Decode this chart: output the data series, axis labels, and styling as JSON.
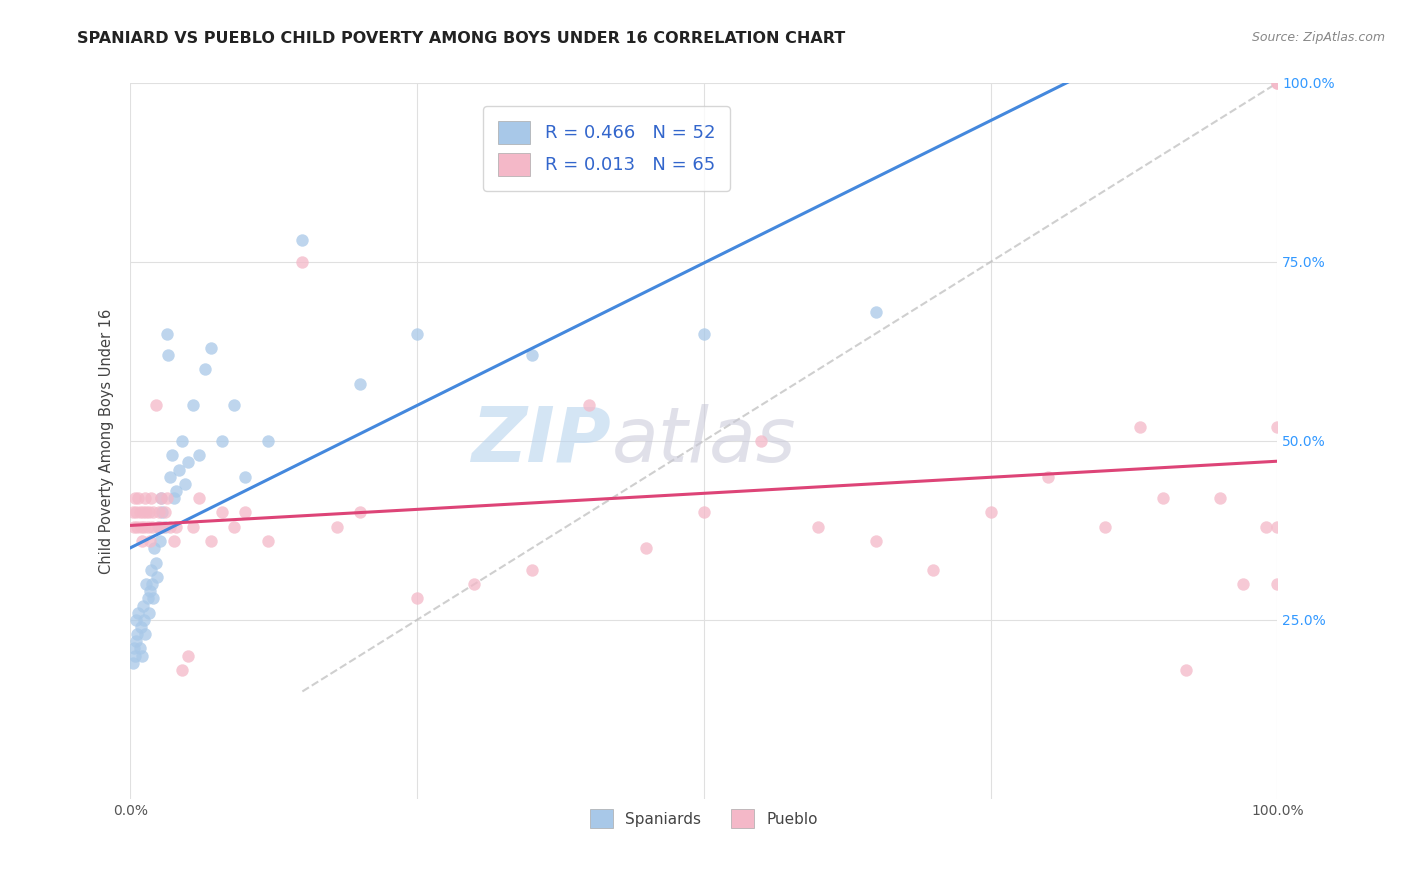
{
  "title": "SPANIARD VS PUEBLO CHILD POVERTY AMONG BOYS UNDER 16 CORRELATION CHART",
  "source": "Source: ZipAtlas.com",
  "ylabel": "Child Poverty Among Boys Under 16",
  "watermark_zip": "ZIP",
  "watermark_atlas": "atlas",
  "legend_r1": "0.466",
  "legend_n1": "52",
  "legend_r2": "0.013",
  "legend_n2": "65",
  "spaniard_color": "#a8c8e8",
  "pueblo_color": "#f4b8c8",
  "spaniard_label": "Spaniards",
  "pueblo_label": "Pueblo",
  "trend_spaniard_color": "#4488dd",
  "trend_pueblo_color": "#dd4477",
  "diagonal_color": "#bbbbbb",
  "background_color": "#ffffff",
  "grid_color": "#e0e0e0",
  "title_color": "#222222",
  "r_color": "#3366cc",
  "right_tick_color": "#3399ff",
  "spaniard_x": [
    0.002,
    0.003,
    0.004,
    0.005,
    0.005,
    0.006,
    0.007,
    0.008,
    0.009,
    0.01,
    0.011,
    0.012,
    0.013,
    0.014,
    0.015,
    0.016,
    0.017,
    0.018,
    0.019,
    0.02,
    0.021,
    0.022,
    0.023,
    0.025,
    0.026,
    0.027,
    0.028,
    0.03,
    0.032,
    0.033,
    0.035,
    0.036,
    0.038,
    0.04,
    0.042,
    0.045,
    0.048,
    0.05,
    0.055,
    0.06,
    0.065,
    0.07,
    0.08,
    0.09,
    0.1,
    0.12,
    0.15,
    0.2,
    0.25,
    0.35,
    0.5,
    0.65
  ],
  "spaniard_y": [
    0.19,
    0.21,
    0.2,
    0.22,
    0.25,
    0.23,
    0.26,
    0.21,
    0.24,
    0.2,
    0.27,
    0.25,
    0.23,
    0.3,
    0.28,
    0.26,
    0.29,
    0.32,
    0.3,
    0.28,
    0.35,
    0.33,
    0.31,
    0.38,
    0.36,
    0.42,
    0.4,
    0.38,
    0.65,
    0.62,
    0.45,
    0.48,
    0.42,
    0.43,
    0.46,
    0.5,
    0.44,
    0.47,
    0.55,
    0.48,
    0.6,
    0.63,
    0.5,
    0.55,
    0.45,
    0.5,
    0.78,
    0.58,
    0.65,
    0.62,
    0.65,
    0.68
  ],
  "pueblo_x": [
    0.002,
    0.003,
    0.004,
    0.005,
    0.006,
    0.007,
    0.008,
    0.009,
    0.01,
    0.011,
    0.012,
    0.013,
    0.014,
    0.015,
    0.016,
    0.017,
    0.018,
    0.019,
    0.02,
    0.022,
    0.024,
    0.025,
    0.027,
    0.028,
    0.03,
    0.032,
    0.035,
    0.038,
    0.04,
    0.045,
    0.05,
    0.055,
    0.06,
    0.07,
    0.08,
    0.09,
    0.1,
    0.12,
    0.15,
    0.18,
    0.2,
    0.25,
    0.3,
    0.35,
    0.4,
    0.45,
    0.5,
    0.55,
    0.6,
    0.65,
    0.7,
    0.75,
    0.8,
    0.85,
    0.88,
    0.9,
    0.92,
    0.95,
    0.97,
    0.99,
    1.0,
    1.0,
    1.0,
    1.0,
    1.0
  ],
  "pueblo_y": [
    0.4,
    0.38,
    0.42,
    0.4,
    0.38,
    0.42,
    0.4,
    0.38,
    0.36,
    0.4,
    0.38,
    0.42,
    0.4,
    0.38,
    0.4,
    0.36,
    0.42,
    0.38,
    0.4,
    0.55,
    0.38,
    0.4,
    0.42,
    0.38,
    0.4,
    0.42,
    0.38,
    0.36,
    0.38,
    0.18,
    0.2,
    0.38,
    0.42,
    0.36,
    0.4,
    0.38,
    0.4,
    0.36,
    0.75,
    0.38,
    0.4,
    0.28,
    0.3,
    0.32,
    0.55,
    0.35,
    0.4,
    0.5,
    0.38,
    0.36,
    0.32,
    0.4,
    0.45,
    0.38,
    0.52,
    0.42,
    0.18,
    0.42,
    0.3,
    0.38,
    0.52,
    0.38,
    0.3,
    1.0,
    1.0
  ],
  "xlim": [
    0.0,
    1.0
  ],
  "ylim": [
    0.0,
    1.0
  ],
  "xticks": [
    0.0,
    0.25,
    0.5,
    0.75,
    1.0
  ],
  "xticklabels_show": [
    "0.0%",
    "",
    "",
    "",
    "100.0%"
  ],
  "yticks_right": [
    0.25,
    0.5,
    0.75,
    1.0
  ],
  "yticklabels_right": [
    "25.0%",
    "50.0%",
    "75.0%",
    "100.0%"
  ]
}
